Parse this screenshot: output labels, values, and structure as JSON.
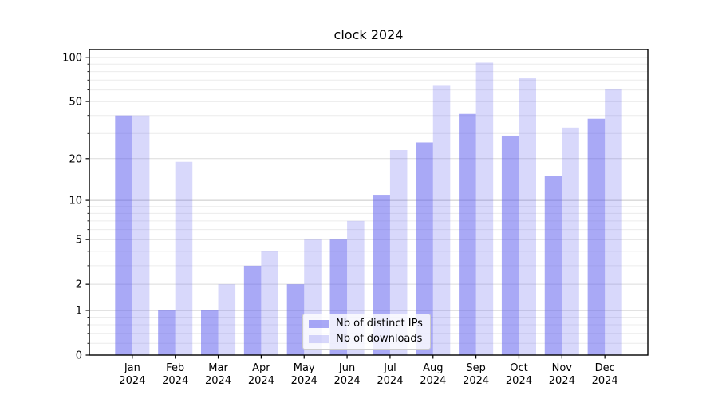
{
  "figure": {
    "kind": "matplotlib-style bar chart"
  },
  "chart_data": {
    "type": "bar",
    "title": "clock 2024",
    "categories": [
      "Jan",
      "Feb",
      "Mar",
      "Apr",
      "May",
      "Jun",
      "Jul",
      "Aug",
      "Sep",
      "Oct",
      "Nov",
      "Dec"
    ],
    "category_year": "2024",
    "series": [
      {
        "name": "Nb of distinct IPs",
        "color": "#5a5aee",
        "opacity": 0.52,
        "values": [
          40,
          1,
          1,
          3,
          2,
          5,
          11,
          26,
          41,
          29,
          15,
          38
        ]
      },
      {
        "name": "Nb of downloads",
        "color": "#5a5aee",
        "opacity": 0.24,
        "values": [
          40,
          19,
          2,
          4,
          5,
          7,
          23,
          64,
          92,
          72,
          33,
          61
        ]
      }
    ],
    "xlabel": "",
    "ylabel": "",
    "yscale": "log1p",
    "ylim": [
      0,
      112
    ],
    "yticks": [
      0,
      1,
      2,
      5,
      10,
      20,
      50,
      100
    ],
    "minor_yticks": [
      0.2,
      0.4,
      0.6,
      0.8,
      3,
      4,
      6,
      7,
      8,
      9,
      30,
      40,
      60,
      70,
      80,
      90
    ],
    "grid": true,
    "legend_position": "lower center",
    "colors": {
      "decade_gridline": "#c6c6c6",
      "labeled_gridline": "#dcdcdc",
      "minor_gridline": "#ececec",
      "axis_frame": "#000000",
      "text": "#000000"
    }
  }
}
